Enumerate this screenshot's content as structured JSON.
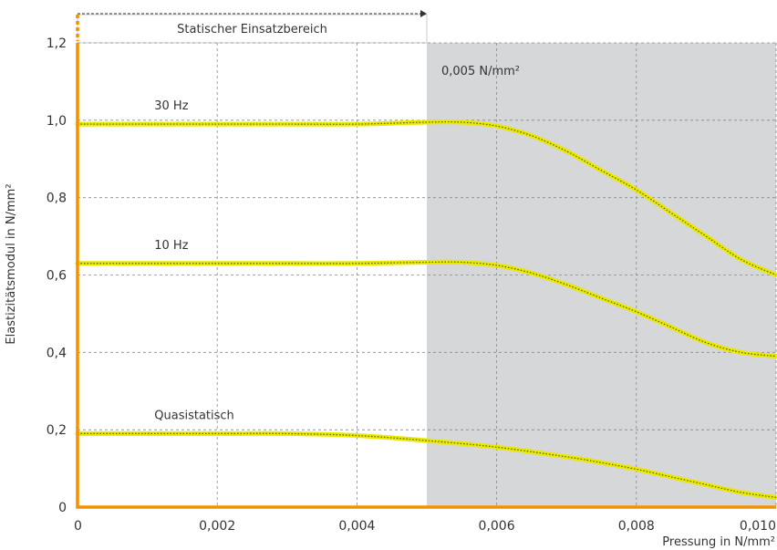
{
  "chart_data": {
    "type": "line",
    "xlabel": "Pressung in N/mm²",
    "ylabel": "Elastizitätsmodul in N/mm²",
    "xlim": [
      0,
      0.01
    ],
    "ylim": [
      0,
      1.2
    ],
    "x_ticks": [
      0,
      0.002,
      0.004,
      0.006,
      0.008,
      0.01
    ],
    "x_tick_labels": [
      "0",
      "0,002",
      "0,004",
      "0,006",
      "0,008",
      "0,010"
    ],
    "y_ticks": [
      0,
      0.2,
      0.4,
      0.6,
      0.8,
      1.0,
      1.2
    ],
    "y_tick_labels": [
      "0",
      "0,2",
      "0,4",
      "0,6",
      "0,8",
      "1,0",
      "1,2"
    ],
    "grid": true,
    "colors": {
      "axis": "#f39200",
      "series_line": "#e8e800",
      "series_dots": "#5a5a00",
      "shaded_region": "#d5d7d9",
      "grid": "#888888"
    },
    "shaded_region": {
      "x_from": 0.005,
      "x_to": 0.01,
      "label": "0,005 N/mm²"
    },
    "static_range": {
      "x_from": 0,
      "x_to": 0.005,
      "label": "Statischer Einsatzbereich"
    },
    "series": [
      {
        "name": "30 Hz",
        "x": [
          0,
          0.001,
          0.002,
          0.003,
          0.004,
          0.005,
          0.0055,
          0.006,
          0.0065,
          0.007,
          0.0075,
          0.008,
          0.0085,
          0.009,
          0.0095,
          0.01
        ],
        "y": [
          0.99,
          0.99,
          0.99,
          0.99,
          0.99,
          0.995,
          0.995,
          0.985,
          0.96,
          0.92,
          0.87,
          0.82,
          0.76,
          0.7,
          0.64,
          0.6
        ]
      },
      {
        "name": "10 Hz",
        "x": [
          0,
          0.001,
          0.002,
          0.003,
          0.004,
          0.005,
          0.0055,
          0.006,
          0.0065,
          0.007,
          0.0075,
          0.008,
          0.0085,
          0.009,
          0.0095,
          0.01
        ],
        "y": [
          0.63,
          0.63,
          0.63,
          0.63,
          0.63,
          0.633,
          0.633,
          0.625,
          0.605,
          0.575,
          0.54,
          0.505,
          0.465,
          0.425,
          0.4,
          0.39
        ]
      },
      {
        "name": "Quasistatisch",
        "x": [
          0,
          0.001,
          0.002,
          0.003,
          0.004,
          0.005,
          0.006,
          0.007,
          0.0075,
          0.008,
          0.0085,
          0.009,
          0.0095,
          0.01
        ],
        "y": [
          0.19,
          0.19,
          0.19,
          0.19,
          0.185,
          0.172,
          0.155,
          0.13,
          0.115,
          0.098,
          0.078,
          0.058,
          0.038,
          0.025
        ]
      }
    ]
  }
}
